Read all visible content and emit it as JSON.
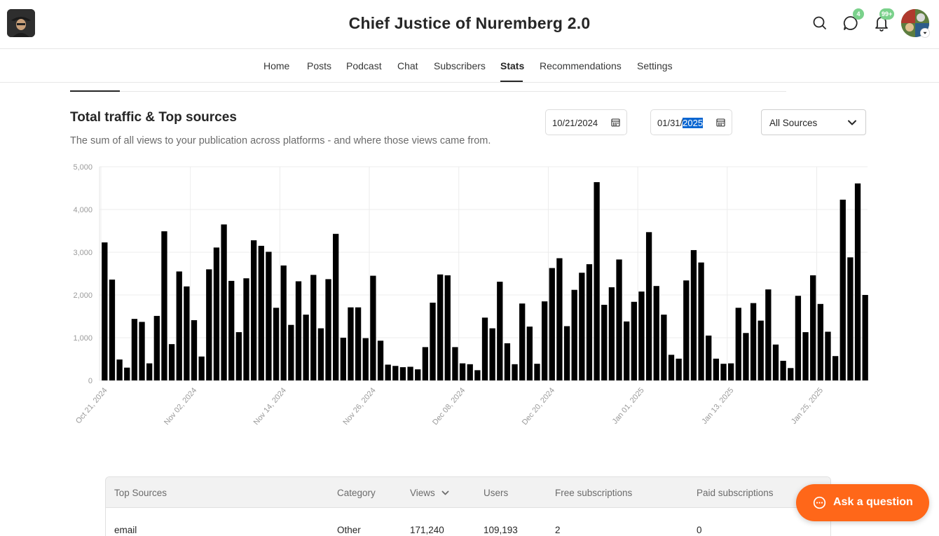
{
  "header": {
    "title": "Chief Justice of Nuremberg 2.0",
    "messages_badge": "4",
    "notifications_badge": "99+"
  },
  "nav": {
    "items": [
      {
        "label": "Home"
      },
      {
        "label": "Posts"
      },
      {
        "label": "Podcast"
      },
      {
        "label": "Chat"
      },
      {
        "label": "Subscribers"
      },
      {
        "label": "Stats",
        "active": true
      },
      {
        "label": "Recommendations"
      },
      {
        "label": "Settings"
      }
    ]
  },
  "section": {
    "title": "Total traffic & Top sources",
    "description": "The sum of all views to your publication across platforms - and where those views came from."
  },
  "filters": {
    "start_date": "10/21/2024",
    "end_date_prefix": "01/31/",
    "end_date_selected": "2025",
    "source": "All Sources"
  },
  "chart_data": {
    "type": "bar",
    "ylim": [
      0,
      5000
    ],
    "yticks": [
      "0",
      "1,000",
      "2,000",
      "3,000",
      "4,000",
      "5,000"
    ],
    "x_tick_labels": [
      "Oct 21, 2024",
      "Nov 02, 2024",
      "Nov 14, 2024",
      "Nov 26, 2024",
      "Dec 08, 2024",
      "Dec 20, 2024",
      "Jan 01, 2025",
      "Jan 13, 2025",
      "Jan 25, 2025"
    ],
    "values": [
      3230,
      2360,
      490,
      300,
      1440,
      1370,
      400,
      1510,
      3490,
      850,
      2550,
      2200,
      1410,
      560,
      2600,
      3110,
      3650,
      2330,
      1130,
      2390,
      3280,
      3150,
      3010,
      1700,
      2690,
      1300,
      2320,
      1540,
      2470,
      1220,
      2370,
      3430,
      1000,
      1710,
      1710,
      990,
      2450,
      930,
      370,
      340,
      310,
      320,
      260,
      780,
      1820,
      2480,
      2460,
      780,
      400,
      380,
      240,
      1470,
      1220,
      2310,
      870,
      380,
      1800,
      1260,
      390,
      1850,
      2630,
      2860,
      1270,
      2120,
      2520,
      2720,
      4640,
      1770,
      2180,
      2830,
      1380,
      1840,
      2080,
      3470,
      2210,
      1540,
      600,
      510,
      2340,
      3050,
      2760,
      1050,
      510,
      390,
      400,
      1700,
      1110,
      1810,
      1400,
      2130,
      840,
      460,
      290,
      1980,
      1130,
      2460,
      1790,
      1140,
      570,
      4230,
      2880,
      4610,
      2000
    ]
  },
  "table": {
    "headers": [
      "Top Sources",
      "Category",
      "Views",
      "Users",
      "Free subscriptions",
      "Paid subscriptions"
    ],
    "rows": [
      [
        "email",
        "Other",
        "171,240",
        "109,193",
        "2",
        "0"
      ]
    ]
  },
  "ask_button": {
    "label": "Ask a question"
  }
}
